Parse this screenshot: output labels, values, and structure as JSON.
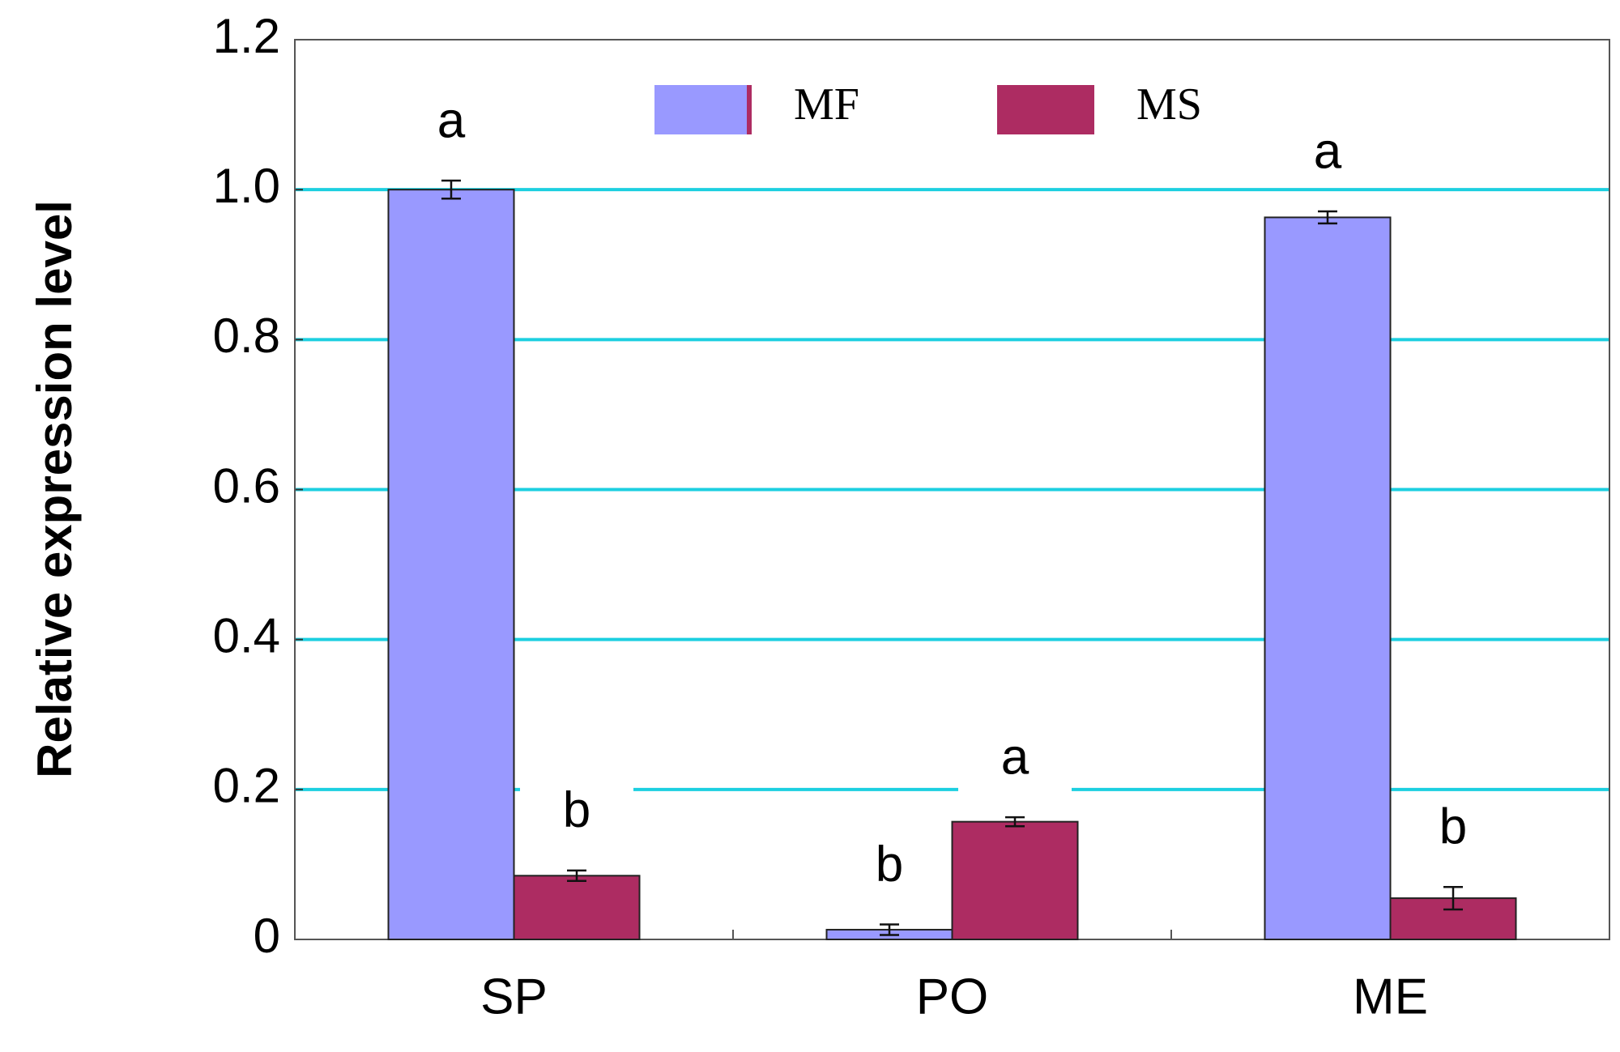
{
  "chart_data": {
    "type": "bar",
    "y_label": "Relative expression level",
    "categories": [
      "SP",
      "PO",
      "ME"
    ],
    "series": [
      {
        "name": "MF",
        "color": "#9999ff",
        "values": [
          1.0,
          0.013,
          0.963
        ],
        "errors": [
          0.012,
          0.007,
          0.008
        ],
        "letters": [
          "a",
          "b",
          "a"
        ]
      },
      {
        "name": "MS",
        "color": "#ad2c62",
        "values": [
          0.085,
          0.157,
          0.055
        ],
        "errors": [
          0.007,
          0.006,
          0.015
        ],
        "letters": [
          "b",
          "a",
          "b"
        ]
      }
    ],
    "ylim": [
      0,
      1.2
    ],
    "yticks": [
      0,
      0.2,
      0.4,
      0.6,
      0.8,
      {
        "value": 1,
        "label": "1.0"
      },
      1.2
    ],
    "grid": true,
    "grid_color": "#1ccfe0"
  }
}
